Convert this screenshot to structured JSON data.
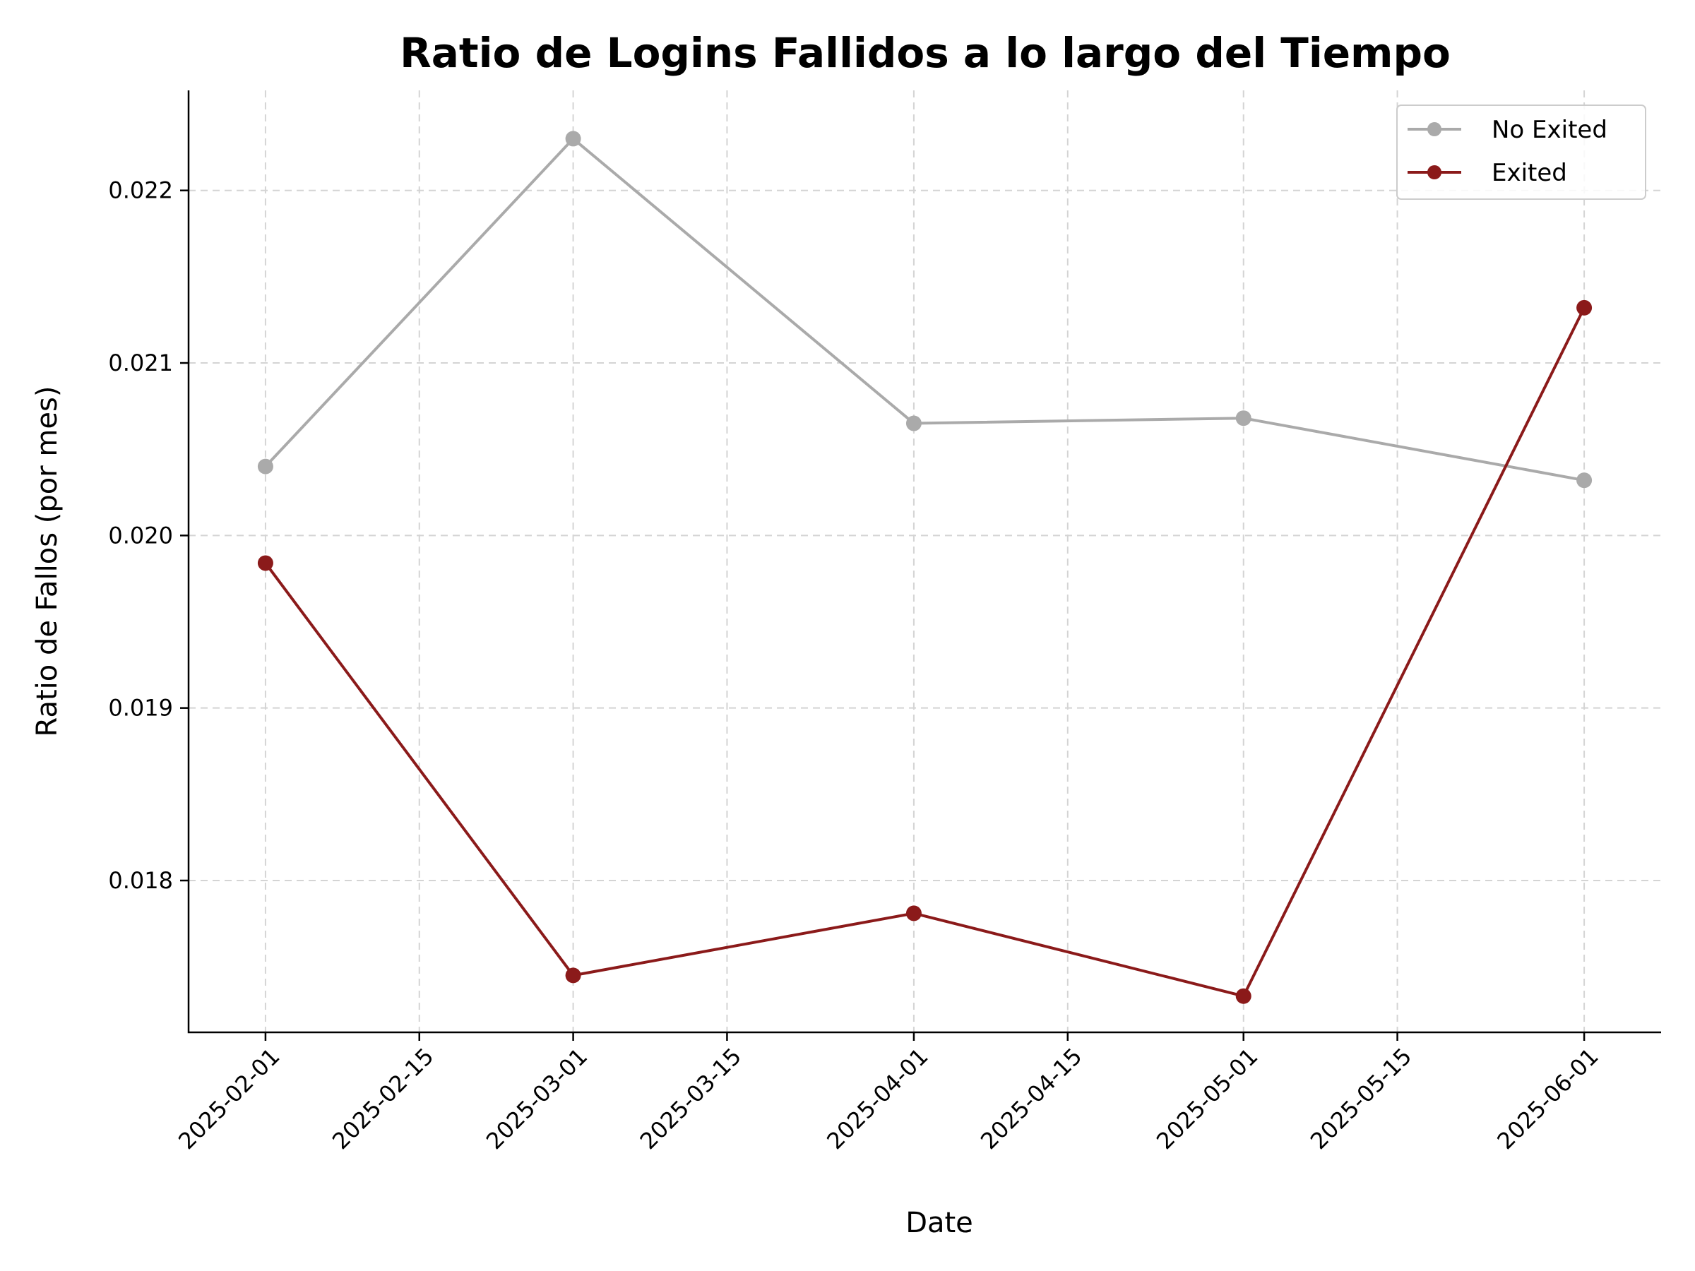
{
  "chart_data": {
    "type": "line",
    "title": "Ratio de Logins Fallidos a lo largo del Tiempo",
    "xlabel": "Date",
    "ylabel": "Ratio de Fallos (por mes)",
    "x": [
      "2025-02-01",
      "2025-03-01",
      "2025-04-01",
      "2025-05-01",
      "2025-06-01"
    ],
    "series": [
      {
        "name": "No Exited",
        "color": "#aaaaaa",
        "values": [
          0.0204,
          0.0223,
          0.02065,
          0.02068,
          0.02032
        ]
      },
      {
        "name": "Exited",
        "color": "#8b1a1a",
        "values": [
          0.01984,
          0.01745,
          0.01781,
          0.01733,
          0.02132
        ]
      }
    ],
    "x_ticks": [
      "2025-02-01",
      "2025-02-15",
      "2025-03-01",
      "2025-03-15",
      "2025-04-01",
      "2025-04-15",
      "2025-05-01",
      "2025-05-15",
      "2025-06-01"
    ],
    "y_ticks": [
      "0.018",
      "0.019",
      "0.020",
      "0.021",
      "0.022"
    ],
    "xlim": [
      "2025-01-25",
      "2025-06-08"
    ],
    "ylim": [
      0.01712,
      0.02258
    ],
    "grid": true,
    "legend_position": "top-right"
  }
}
